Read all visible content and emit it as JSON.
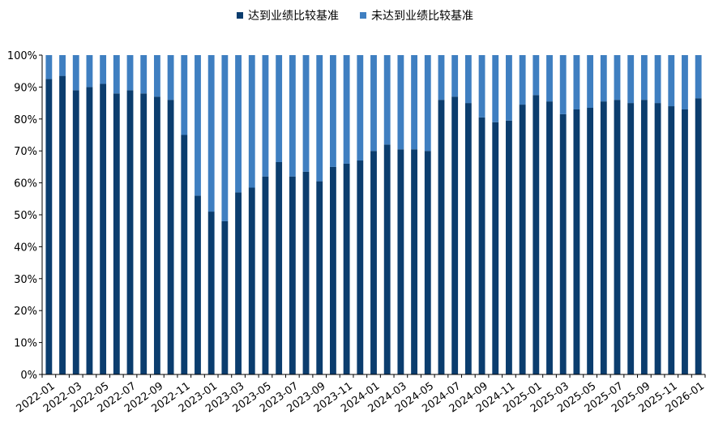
{
  "chart_data": {
    "type": "bar",
    "stacked": true,
    "title": "",
    "xlabel": "",
    "ylabel": "",
    "ylim": [
      0,
      100
    ],
    "y_ticks": [
      "0%",
      "10%",
      "20%",
      "30%",
      "40%",
      "50%",
      "60%",
      "70%",
      "80%",
      "90%",
      "100%"
    ],
    "legend_position": "top-center",
    "grid": false,
    "categories": [
      "2022-01",
      "2022-02",
      "2022-03",
      "2022-04",
      "2022-05",
      "2022-06",
      "2022-07",
      "2022-08",
      "2022-09",
      "2022-10",
      "2022-11",
      "2022-12",
      "2023-01",
      "2023-02",
      "2023-03",
      "2023-04",
      "2023-05",
      "2023-06",
      "2023-07",
      "2023-08",
      "2023-09",
      "2023-10",
      "2023-11",
      "2023-12",
      "2024-01",
      "2024-02",
      "2024-03",
      "2024-04",
      "2024-05",
      "2024-06",
      "2024-07",
      "2024-08",
      "2024-09",
      "2024-10",
      "2024-11",
      "2024-12",
      "2025-01",
      "2025-02",
      "2025-03",
      "2025-04",
      "2025-05",
      "2025-06",
      "2025-07",
      "2025-08",
      "2025-09",
      "2025-10",
      "2025-11",
      "2025-12",
      "2026-01"
    ],
    "x_tick_labels": [
      "2022-01",
      "2022-03",
      "2022-05",
      "2022-07",
      "2022-09",
      "2022-11",
      "2023-01",
      "2023-03",
      "2023-05",
      "2023-07",
      "2023-09",
      "2023-11",
      "2024-01",
      "2024-03",
      "2024-05",
      "2024-07",
      "2024-09",
      "2024-11",
      "2025-01",
      "2025-03",
      "2025-05",
      "2025-07",
      "2025-09",
      "2025-11",
      "2026-01"
    ],
    "series": [
      {
        "name": "达到业绩比较基准",
        "color": "#0b3d6e",
        "values": [
          92.5,
          93.5,
          89,
          90,
          91,
          88,
          89,
          88,
          87,
          86,
          75,
          56,
          51,
          48,
          57,
          58.5,
          62,
          66.5,
          62,
          63.5,
          60.5,
          65,
          66,
          67,
          70,
          72,
          70.5,
          70.5,
          70,
          86,
          87,
          85,
          80.5,
          79,
          79.5,
          84.5,
          87.5,
          85.5,
          81.5,
          83,
          83.5,
          85.5,
          86,
          85,
          86,
          85,
          84,
          83,
          86.5
        ]
      },
      {
        "name": "未达到业绩比较基准",
        "color": "#3f7fc1",
        "values": [
          7.5,
          6.5,
          11,
          10,
          9,
          12,
          11,
          12,
          13,
          14,
          25,
          44,
          49,
          52,
          43,
          41.5,
          38,
          33.5,
          38,
          36.5,
          39.5,
          35,
          34,
          33,
          30,
          28,
          29.5,
          29.5,
          30,
          14,
          13,
          15,
          19.5,
          21,
          20.5,
          15.5,
          12.5,
          14.5,
          18.5,
          17,
          16.5,
          14.5,
          14,
          15,
          14,
          15,
          16,
          17,
          13.5
        ]
      }
    ]
  }
}
